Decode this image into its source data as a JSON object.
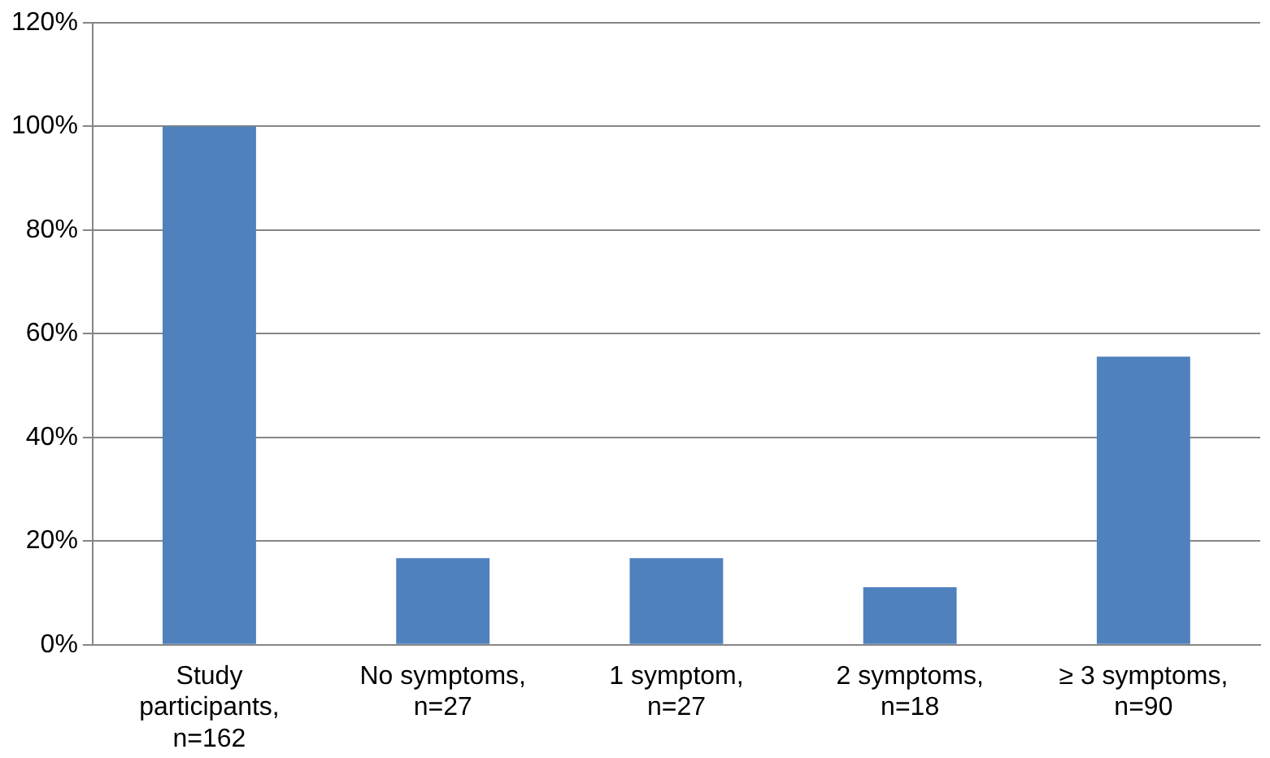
{
  "chart_data": {
    "type": "bar",
    "categories": [
      "Study participants, n=162",
      "No symptoms, n=27",
      "1 symptom, n=27",
      "2 symptoms, n=18",
      "≥ 3 symptoms, n=90"
    ],
    "values": [
      100,
      16.7,
      16.7,
      11.1,
      55.6
    ],
    "color": "#4f81bd",
    "ylim": [
      0,
      120
    ],
    "yticks": [
      {
        "value": 0,
        "label": "0%"
      },
      {
        "value": 20,
        "label": "20%"
      },
      {
        "value": 40,
        "label": "40%"
      },
      {
        "value": 60,
        "label": "60%"
      },
      {
        "value": 80,
        "label": "80%"
      },
      {
        "value": 100,
        "label": "100%"
      },
      {
        "value": 120,
        "label": "120%"
      }
    ],
    "grid": "y",
    "legend": false
  }
}
